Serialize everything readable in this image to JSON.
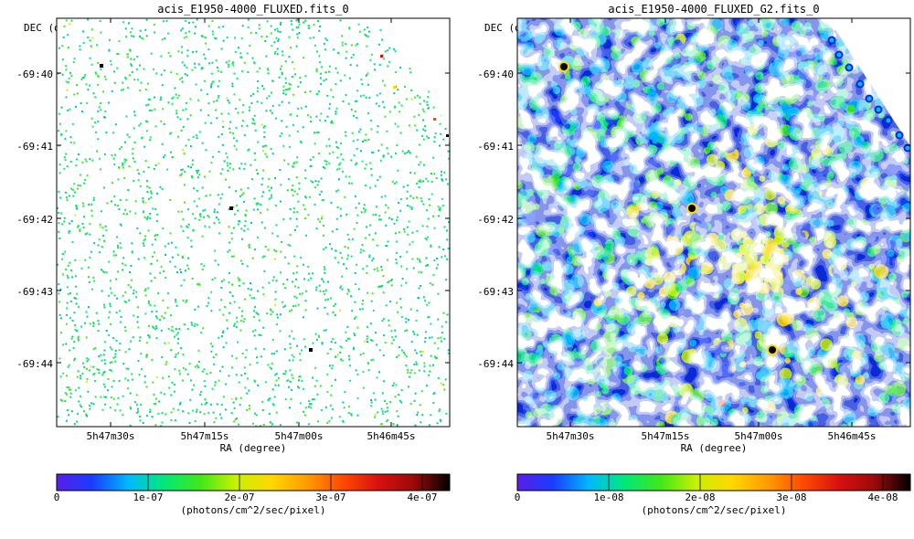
{
  "panels": [
    {
      "id": "left",
      "title": "acis_E1950-4000_FLUXED.fits_0",
      "y_axis_label": "DEC (degree)",
      "x_axis_label": "RA (degree)",
      "y_ticks": [
        "-69:40",
        "-69:41",
        "-69:42",
        "-69:43",
        "-69:44"
      ],
      "x_ticks": [
        "5h47m30s",
        "5h47m15s",
        "5h47m00s",
        "5h46m45s"
      ],
      "colorbar": {
        "ticks": [
          "0",
          "1e-07",
          "2e-07",
          "3e-07",
          "4e-07"
        ],
        "range": [
          0,
          4.3e-07
        ],
        "unit": "(photons/cm^2/sec/pixel)"
      },
      "image_type": "sparse",
      "point_sources": [
        {
          "ra": "5h47m29.5s",
          "dec": "-69:39:52"
        },
        {
          "ra": "5h47m12.5s",
          "dec": "-69:41:50"
        },
        {
          "ra": "5h46m58.5s",
          "dec": "-69:43:46"
        }
      ]
    },
    {
      "id": "right",
      "title": "acis_E1950-4000_FLUXED_G2.fits_0",
      "y_axis_label": "DEC (degree)",
      "x_axis_label": "RA (degree)",
      "y_ticks": [
        "-69:40",
        "-69:41",
        "-69:42",
        "-69:43",
        "-69:44"
      ],
      "x_ticks": [
        "5h47m30s",
        "5h47m15s",
        "5h47m00s",
        "5h46m45s"
      ],
      "colorbar": {
        "ticks": [
          "0",
          "1e-08",
          "2e-08",
          "3e-08",
          "4e-08"
        ],
        "range": [
          0,
          4.3e-08
        ],
        "unit": "(photons/cm^2/sec/pixel)"
      },
      "image_type": "smoothed",
      "point_sources": [
        {
          "ra": "5h47m29.5s",
          "dec": "-69:39:52"
        },
        {
          "ra": "5h47m12.5s",
          "dec": "-69:41:50"
        },
        {
          "ra": "5h46m58.5s",
          "dec": "-69:43:46"
        }
      ]
    }
  ],
  "colormap": [
    "#5a1ee8",
    "#1a3cff",
    "#00b8ff",
    "#00e87a",
    "#3fe81a",
    "#c8f000",
    "#ffd800",
    "#ff9c00",
    "#ff4a00",
    "#d81010",
    "#9a0a0a",
    "#000000"
  ],
  "chart_data": [
    {
      "type": "heatmap",
      "title": "acis_E1950-4000_FLUXED.fits_0",
      "xlabel": "RA (degree)",
      "ylabel": "DEC (degree)",
      "x_ticks": [
        "5h47m30s",
        "5h47m15s",
        "5h47m00s",
        "5h46m45s"
      ],
      "y_ticks": [
        "-69:40",
        "-69:41",
        "-69:42",
        "-69:43",
        "-69:44"
      ],
      "color_range": [
        0,
        4.3e-07
      ],
      "color_ticks": [
        0,
        1e-07,
        2e-07,
        3e-07,
        4e-07
      ],
      "color_unit": "(photons/cm^2/sec/pixel)"
    },
    {
      "type": "heatmap",
      "title": "acis_E1950-4000_FLUXED_G2.fits_0",
      "xlabel": "RA (degree)",
      "ylabel": "DEC (degree)",
      "x_ticks": [
        "5h47m30s",
        "5h47m15s",
        "5h47m00s",
        "5h46m45s"
      ],
      "y_ticks": [
        "-69:40",
        "-69:41",
        "-69:42",
        "-69:43",
        "-69:44"
      ],
      "color_range": [
        0,
        4.3e-08
      ],
      "color_ticks": [
        0,
        1e-08,
        2e-08,
        3e-08,
        4e-08
      ],
      "color_unit": "(photons/cm^2/sec/pixel)"
    }
  ]
}
